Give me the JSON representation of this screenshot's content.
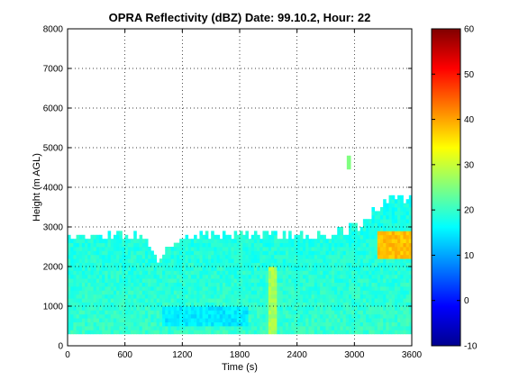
{
  "chart_data": {
    "type": "heatmap",
    "title": "OPRA Reflectivity (dBZ)  Date: 99.10.2, Hour: 22",
    "xlabel": "Time (s)",
    "ylabel": "Height (m AGL)",
    "xlim": [
      0,
      3600
    ],
    "ylim": [
      0,
      8000
    ],
    "xticks": [
      "0",
      "600",
      "1200",
      "1800",
      "2400",
      "3000",
      "3600"
    ],
    "xtick_values": [
      0,
      600,
      1200,
      1800,
      2400,
      3000,
      3600
    ],
    "yticks": [
      "0",
      "1000",
      "2000",
      "3000",
      "4000",
      "5000",
      "6000",
      "7000",
      "8000"
    ],
    "ytick_values": [
      0,
      1000,
      2000,
      3000,
      4000,
      5000,
      6000,
      7000,
      8000
    ],
    "grid": true,
    "colorbar": {
      "min": -10,
      "max": 60,
      "ticks": [
        "-10",
        "0",
        "10",
        "20",
        "30",
        "40",
        "50",
        "60"
      ],
      "tick_values": [
        -10,
        0,
        10,
        20,
        30,
        40,
        50,
        60
      ],
      "colormap": "jet"
    },
    "echo_base_m": 300,
    "echo_top_profile": {
      "time_s": [
        0,
        300,
        600,
        780,
        900,
        960,
        1020,
        1200,
        1800,
        2400,
        2820,
        2940,
        3060,
        3180,
        3300,
        3420,
        3600
      ],
      "top_m": [
        2700,
        2800,
        2800,
        2750,
        2300,
        2000,
        2300,
        2800,
        2800,
        2750,
        2800,
        2900,
        3000,
        3300,
        3500,
        3700,
        3600
      ]
    },
    "typical_reflectivity_dbz": 20,
    "features": [
      {
        "time_s": [
          1000,
          1900
        ],
        "height_m": [
          500,
          1000
        ],
        "dbz": 15
      },
      {
        "time_s": [
          2100,
          2200
        ],
        "height_m": [
          300,
          2000
        ],
        "dbz": 28
      },
      {
        "time_s": [
          3250,
          3600
        ],
        "height_m": [
          2200,
          2900
        ],
        "dbz": 38
      },
      {
        "time_s": [
          2920,
          2960
        ],
        "height_m": [
          4450,
          4800
        ],
        "dbz": 25
      }
    ]
  }
}
